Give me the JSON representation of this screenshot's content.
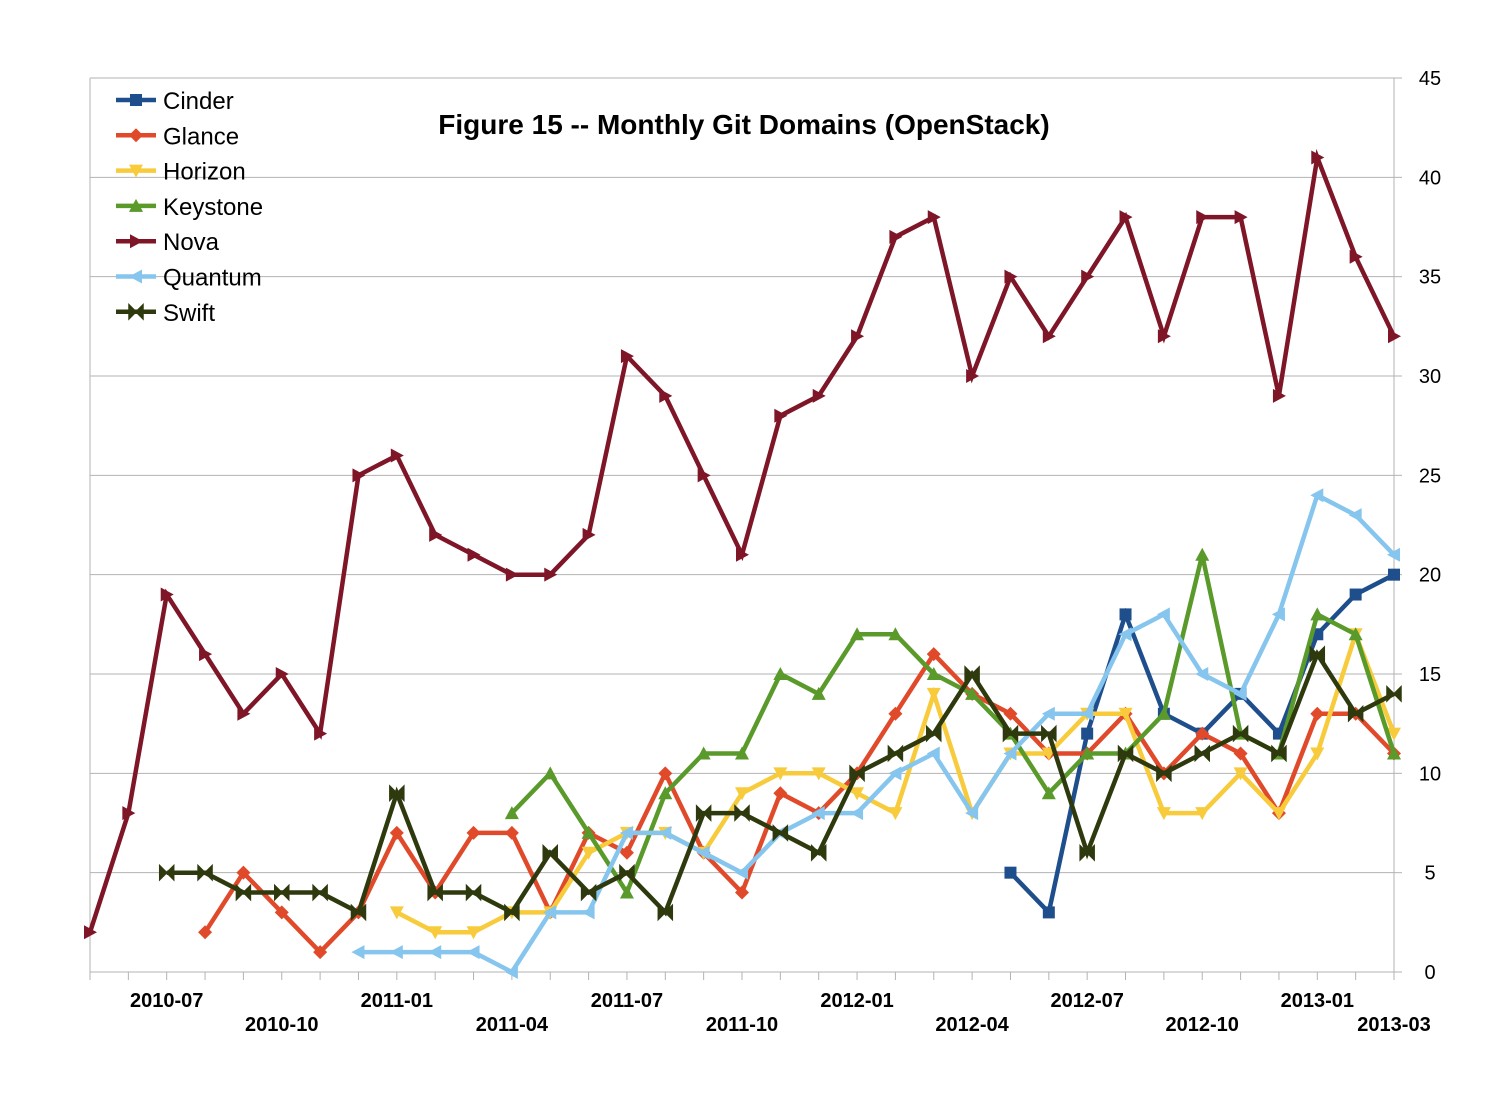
{
  "chart_data": {
    "type": "line",
    "title": "Figure 15 -- Monthly Git Domains (OpenStack)",
    "xlabel": "",
    "ylabel": "",
    "ylim": [
      0,
      45
    ],
    "yticks": [
      0,
      5,
      10,
      15,
      20,
      25,
      30,
      35,
      40,
      45
    ],
    "y_axis_side": "right",
    "grid": true,
    "legend": "top-left",
    "x": [
      "2010-05",
      "2010-06",
      "2010-07",
      "2010-08",
      "2010-09",
      "2010-10",
      "2010-11",
      "2010-12",
      "2011-01",
      "2011-02",
      "2011-03",
      "2011-04",
      "2011-05",
      "2011-06",
      "2011-07",
      "2011-08",
      "2011-09",
      "2011-10",
      "2011-11",
      "2011-12",
      "2012-01",
      "2012-02",
      "2012-03",
      "2012-04",
      "2012-05",
      "2012-06",
      "2012-07",
      "2012-08",
      "2012-09",
      "2012-10",
      "2012-11",
      "2012-12",
      "2013-01",
      "2013-02",
      "2013-03"
    ],
    "x_tick_labels": [
      {
        "x": "2010-07",
        "label": "2010-07",
        "row": 0
      },
      {
        "x": "2010-10",
        "label": "2010-10",
        "row": 1
      },
      {
        "x": "2011-01",
        "label": "2011-01",
        "row": 0
      },
      {
        "x": "2011-04",
        "label": "2011-04",
        "row": 1
      },
      {
        "x": "2011-07",
        "label": "2011-07",
        "row": 0
      },
      {
        "x": "2011-10",
        "label": "2011-10",
        "row": 1
      },
      {
        "x": "2012-01",
        "label": "2012-01",
        "row": 0
      },
      {
        "x": "2012-04",
        "label": "2012-04",
        "row": 1
      },
      {
        "x": "2012-07",
        "label": "2012-07",
        "row": 0
      },
      {
        "x": "2012-10",
        "label": "2012-10",
        "row": 1
      },
      {
        "x": "2013-01",
        "label": "2013-01",
        "row": 0
      },
      {
        "x": "2013-03",
        "label": "2013-03",
        "row": 1
      }
    ],
    "series": [
      {
        "name": "Cinder",
        "color": "#1F4E8C",
        "marker": "square",
        "values": [
          null,
          null,
          null,
          null,
          null,
          null,
          null,
          null,
          null,
          null,
          null,
          null,
          null,
          null,
          null,
          null,
          null,
          null,
          null,
          null,
          null,
          null,
          null,
          null,
          5,
          3,
          12,
          18,
          13,
          12,
          14,
          12,
          17,
          19,
          20
        ]
      },
      {
        "name": "Glance",
        "color": "#E04A2A",
        "marker": "diamond",
        "values": [
          null,
          null,
          null,
          2,
          5,
          3,
          1,
          3,
          7,
          4,
          7,
          7,
          3,
          7,
          6,
          10,
          6,
          4,
          9,
          8,
          10,
          13,
          16,
          14,
          13,
          11,
          11,
          13,
          10,
          12,
          11,
          8,
          13,
          13,
          11
        ]
      },
      {
        "name": "Horizon",
        "color": "#F7CB3B",
        "marker": "triangle-down",
        "values": [
          null,
          null,
          null,
          null,
          null,
          null,
          null,
          null,
          3,
          2,
          2,
          3,
          3,
          6,
          7,
          7,
          6,
          9,
          10,
          10,
          9,
          8,
          14,
          8,
          11,
          11,
          13,
          13,
          8,
          8,
          10,
          8,
          11,
          17,
          12
        ]
      },
      {
        "name": "Keystone",
        "color": "#5A9A2B",
        "marker": "triangle-up",
        "values": [
          null,
          null,
          null,
          null,
          null,
          null,
          null,
          null,
          null,
          null,
          null,
          8,
          10,
          7,
          4,
          9,
          11,
          11,
          15,
          14,
          17,
          17,
          15,
          14,
          12,
          9,
          11,
          11,
          13,
          21,
          12,
          11,
          18,
          17,
          11
        ]
      },
      {
        "name": "Nova",
        "color": "#7E1628",
        "marker": "triangle-right",
        "values": [
          2,
          8,
          19,
          16,
          13,
          15,
          12,
          25,
          26,
          22,
          21,
          20,
          20,
          22,
          31,
          29,
          25,
          21,
          28,
          29,
          32,
          37,
          38,
          30,
          35,
          32,
          35,
          38,
          32,
          38,
          38,
          29,
          41,
          36,
          32
        ]
      },
      {
        "name": "Quantum",
        "color": "#86C5EE",
        "marker": "triangle-left",
        "values": [
          null,
          null,
          null,
          null,
          null,
          null,
          null,
          1,
          1,
          1,
          1,
          0,
          3,
          3,
          7,
          7,
          6,
          5,
          7,
          8,
          8,
          10,
          11,
          8,
          11,
          13,
          13,
          17,
          18,
          15,
          14,
          18,
          24,
          23,
          21
        ]
      },
      {
        "name": "Swift",
        "color": "#2E3A0E",
        "marker": "bowtie",
        "values": [
          null,
          null,
          5,
          5,
          4,
          4,
          4,
          3,
          9,
          4,
          4,
          3,
          6,
          4,
          5,
          3,
          8,
          8,
          7,
          6,
          10,
          11,
          12,
          15,
          12,
          12,
          6,
          11,
          10,
          11,
          12,
          11,
          16,
          13,
          14
        ]
      }
    ]
  }
}
